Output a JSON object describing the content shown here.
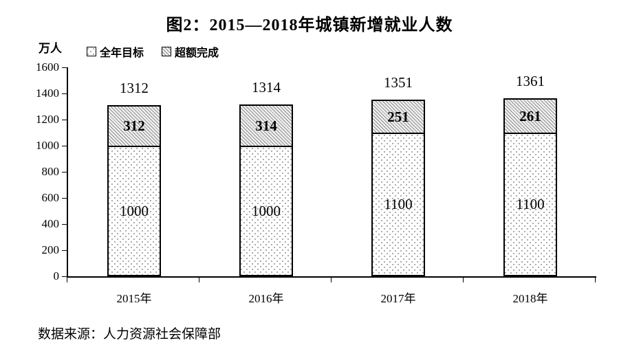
{
  "title": "图2：2015—2018年城镇新增就业人数",
  "y_axis": {
    "unit_label": "万人",
    "min": 0,
    "max": 1600,
    "step": 200
  },
  "legend": [
    {
      "label": "全年目标",
      "pattern": "dots"
    },
    {
      "label": "超额完成",
      "pattern": "diagonal-hatch"
    }
  ],
  "chart_data": {
    "type": "bar",
    "stacked": true,
    "categories": [
      "2015年",
      "2016年",
      "2017年",
      "2018年"
    ],
    "series": [
      {
        "name": "全年目标",
        "pattern": "dots",
        "values": [
          1000,
          1000,
          1100,
          1100
        ]
      },
      {
        "name": "超额完成",
        "pattern": "diagonal-hatch",
        "values": [
          312,
          314,
          251,
          261
        ]
      }
    ],
    "totals": [
      1312,
      1314,
      1351,
      1361
    ],
    "ylabel": "万人",
    "ylim": [
      0,
      1600
    ],
    "grid": false,
    "legend_position": "top-left"
  },
  "source": "数据来源：人力资源社会保障部",
  "colors": {
    "text": "#000000",
    "border": "#000000",
    "hatch_line": "#8f8f8f",
    "hatch_bg": "#f0f0f0",
    "dot_color": "#969696",
    "background": "#ffffff"
  }
}
